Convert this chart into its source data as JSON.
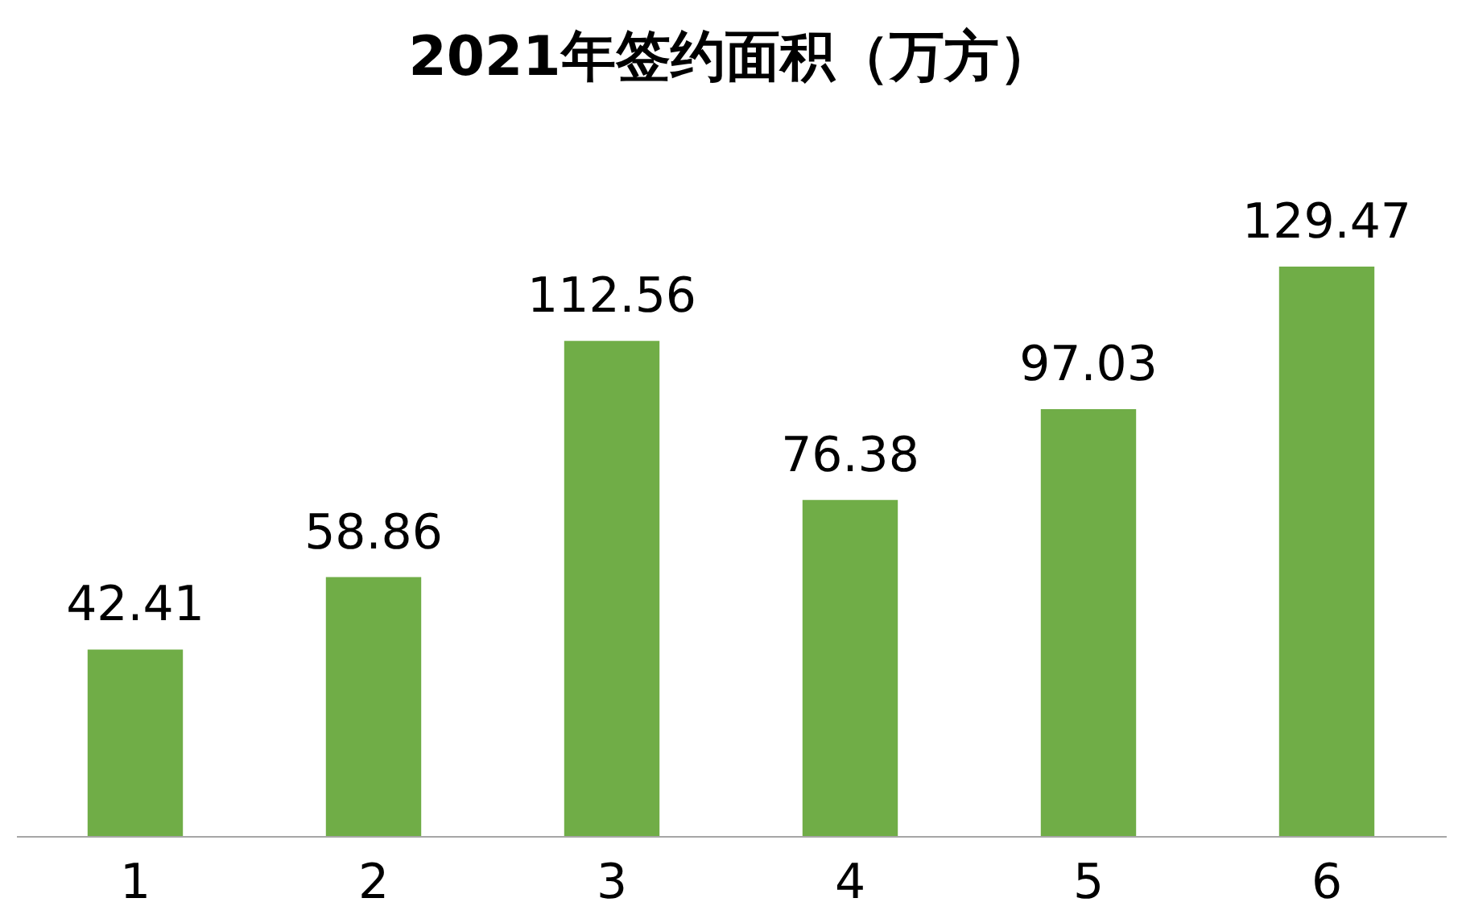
{
  "chart_data": {
    "type": "bar",
    "title": "2021年签约面积（万方）",
    "categories": [
      "1",
      "2",
      "3",
      "4",
      "5",
      "6"
    ],
    "values": [
      42.41,
      58.86,
      112.56,
      76.38,
      97.03,
      129.47
    ],
    "color": "#70ad47",
    "data_labels": true,
    "grid": false
  }
}
